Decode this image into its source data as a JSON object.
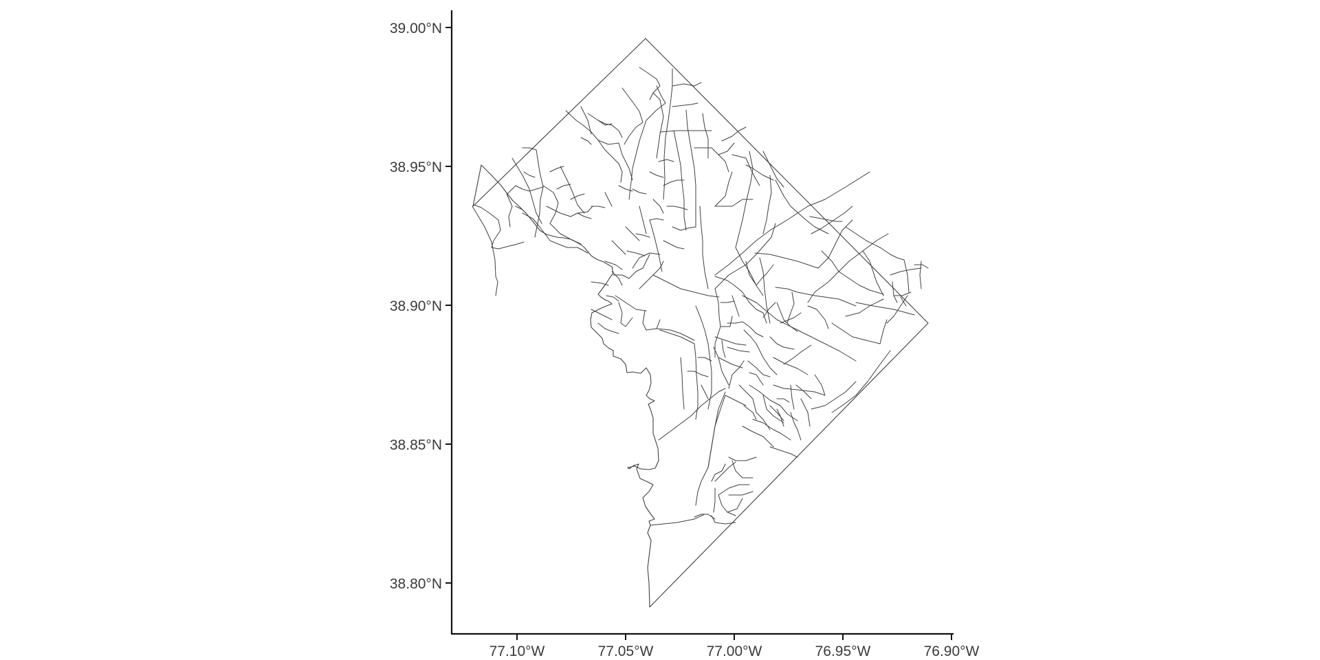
{
  "axes": {
    "x_ticks": [
      "77.10°W",
      "77.05°W",
      "77.00°W",
      "76.95°W",
      "76.90°W"
    ],
    "y_ticks": [
      "39.00°N",
      "38.95°N",
      "38.90°N",
      "38.85°N",
      "38.80°N"
    ]
  },
  "map": {
    "region": "District of Columbia census tracts",
    "type": "polygon-boundaries",
    "fill_color": "#ffffff",
    "stroke_color": "#3f3f3f",
    "x_range_deg": [
      -77.125,
      -76.9
    ],
    "y_range_deg": [
      38.79,
      39.005
    ]
  }
}
